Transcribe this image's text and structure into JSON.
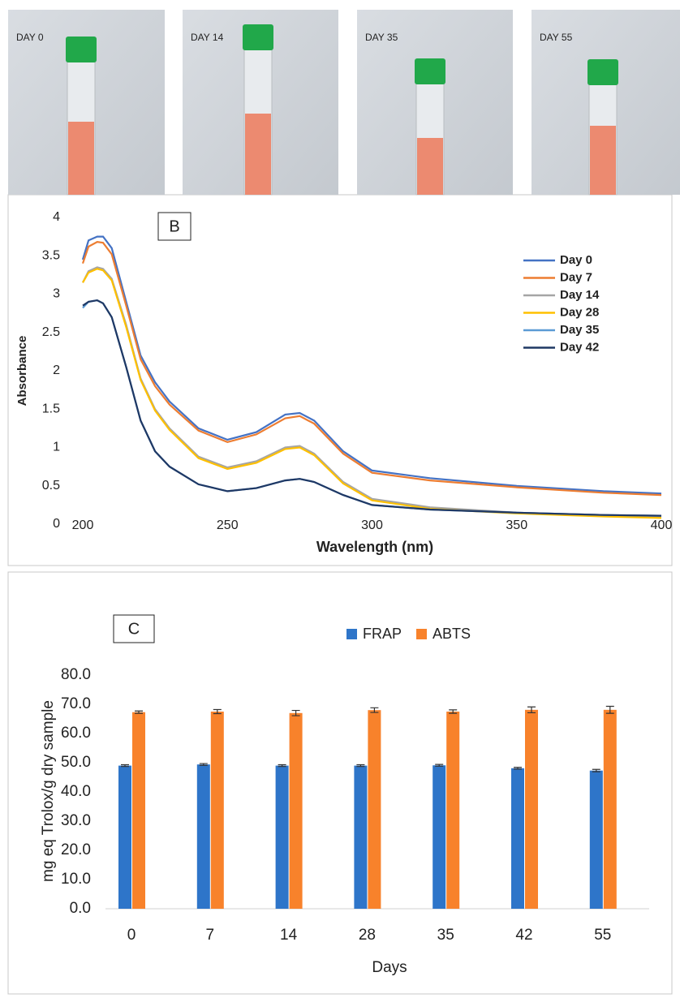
{
  "panel_a": {
    "labels": [
      "DAY 0",
      "DAY 14",
      "DAY 35",
      "DAY 55"
    ]
  },
  "chart_data": [
    {
      "type": "line",
      "title": "B",
      "x_label": "Wavelength (nm)",
      "y_label": "Absorbance",
      "x": [
        200,
        202,
        205,
        207,
        210,
        215,
        220,
        225,
        230,
        240,
        250,
        260,
        270,
        275,
        280,
        290,
        300,
        320,
        350,
        380,
        400
      ],
      "series": [
        {
          "name": "Day 0",
          "color": "#4472c4",
          "values": [
            3.45,
            3.7,
            3.75,
            3.75,
            3.6,
            2.9,
            2.2,
            1.85,
            1.6,
            1.25,
            1.1,
            1.2,
            1.43,
            1.45,
            1.35,
            0.95,
            0.7,
            0.6,
            0.5,
            0.43,
            0.4
          ]
        },
        {
          "name": "Day 7",
          "color": "#ed7d31",
          "values": [
            3.4,
            3.62,
            3.68,
            3.67,
            3.52,
            2.85,
            2.15,
            1.8,
            1.56,
            1.22,
            1.07,
            1.17,
            1.38,
            1.41,
            1.31,
            0.92,
            0.67,
            0.57,
            0.48,
            0.41,
            0.38
          ]
        },
        {
          "name": "Day 14",
          "color": "#a5a5a5",
          "values": [
            3.15,
            3.3,
            3.35,
            3.33,
            3.2,
            2.6,
            1.9,
            1.5,
            1.25,
            0.88,
            0.74,
            0.82,
            1.0,
            1.02,
            0.92,
            0.55,
            0.33,
            0.22,
            0.15,
            0.12,
            0.1
          ]
        },
        {
          "name": "Day 28",
          "color": "#ffc000",
          "values": [
            3.15,
            3.28,
            3.33,
            3.31,
            3.18,
            2.57,
            1.88,
            1.48,
            1.23,
            0.86,
            0.72,
            0.8,
            0.98,
            1.0,
            0.9,
            0.53,
            0.31,
            0.2,
            0.14,
            0.1,
            0.08
          ]
        },
        {
          "name": "Day 35",
          "color": "#5b9bd5",
          "values": [
            2.82,
            2.9,
            2.92,
            2.88,
            2.7,
            2.05,
            1.35,
            0.95,
            0.75,
            0.52,
            0.43,
            0.47,
            0.57,
            0.59,
            0.55,
            0.38,
            0.25,
            0.19,
            0.15,
            0.12,
            0.11
          ]
        },
        {
          "name": "Day 42",
          "color": "#1f3864",
          "values": [
            2.85,
            2.9,
            2.92,
            2.88,
            2.7,
            2.05,
            1.35,
            0.95,
            0.75,
            0.52,
            0.43,
            0.47,
            0.57,
            0.59,
            0.55,
            0.38,
            0.25,
            0.19,
            0.15,
            0.12,
            0.11
          ]
        }
      ],
      "xlim": [
        200,
        400
      ],
      "xticks": [
        200,
        250,
        300,
        350,
        400
      ],
      "ylim": [
        0,
        4
      ],
      "yticks": [
        0,
        0.5,
        1,
        1.5,
        2,
        2.5,
        3,
        3.5,
        4
      ],
      "grid": false,
      "legend": "upper right"
    },
    {
      "type": "bar",
      "title": "C",
      "x_label": "Days",
      "y_label": "mg eq Trolox/g dry sample",
      "categories": [
        "0",
        "7",
        "14",
        "28",
        "35",
        "42",
        "55"
      ],
      "series": [
        {
          "name": "FRAP",
          "color": "#2e75c9",
          "values": [
            49.0,
            49.4,
            49.0,
            49.0,
            49.1,
            48.1,
            47.3
          ],
          "errors": [
            0.3,
            0.3,
            0.3,
            0.3,
            0.3,
            0.3,
            0.4
          ]
        },
        {
          "name": "ABTS",
          "color": "#f8822b",
          "values": [
            67.3,
            67.5,
            67.0,
            68.0,
            67.5,
            68.1,
            68.1
          ],
          "errors": [
            0.4,
            0.7,
            0.9,
            0.8,
            0.6,
            1.0,
            1.2
          ]
        }
      ],
      "ylim": [
        0,
        80
      ],
      "yticks": [
        {
          "value": 0,
          "label": "0.0"
        },
        {
          "value": 10,
          "label": "10.0"
        },
        {
          "value": 20,
          "label": "20.0"
        },
        {
          "value": 30,
          "label": "30.0"
        },
        {
          "value": 40,
          "label": "40.0"
        },
        {
          "value": 50,
          "label": "50.0"
        },
        {
          "value": 60,
          "label": "60.0"
        },
        {
          "value": 70,
          "label": "70.0"
        },
        {
          "value": 80,
          "label": "80.0"
        }
      ],
      "grid": false,
      "legend": "upper center"
    }
  ]
}
